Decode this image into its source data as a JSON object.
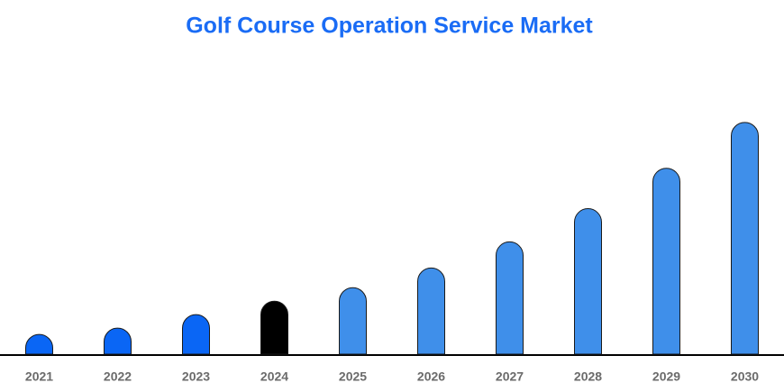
{
  "chart_data": {
    "type": "bar",
    "title": "Golf Course Operation Service Market",
    "categories": [
      "2021",
      "2022",
      "2023",
      "2024",
      "2025",
      "2026",
      "2027",
      "2028",
      "2029",
      "2030"
    ],
    "values": [
      22,
      29,
      44,
      59,
      74,
      96,
      125,
      162,
      207,
      258
    ],
    "colors": [
      "#0a66f5",
      "#0a66f5",
      "#0a66f5",
      "#000000",
      "#3f8fea",
      "#3f8fea",
      "#3f8fea",
      "#3f8fea",
      "#3f8fea",
      "#3f8fea"
    ],
    "ylim": [
      0,
      300
    ]
  }
}
